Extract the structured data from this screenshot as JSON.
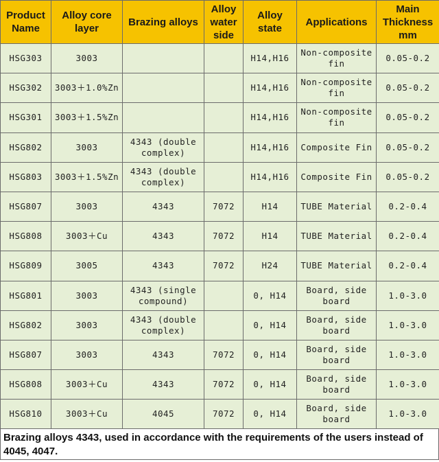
{
  "table": {
    "header": [
      "Product Name",
      "Alloy core layer",
      "Brazing alloys",
      "Alloy water side",
      "Alloy state",
      "Applications",
      "Main Thickness mm"
    ],
    "rows": [
      [
        "HSG303",
        "3003",
        "",
        "",
        "H14,H16",
        "Non-composite fin",
        "0.05-0.2"
      ],
      [
        "HSG302",
        "3003＋1.0%Zn",
        "",
        "",
        "H14,H16",
        "Non-composite fin",
        "0.05-0.2"
      ],
      [
        "HSG301",
        "3003＋1.5%Zn",
        "",
        "",
        "H14,H16",
        "Non-composite fin",
        "0.05-0.2"
      ],
      [
        "HSG802",
        "3003",
        "4343 (double complex)",
        "",
        "H14,H16",
        "Composite Fin",
        "0.05-0.2"
      ],
      [
        "HSG803",
        "3003＋1.5%Zn",
        "4343 (double complex)",
        "",
        "H14,H16",
        "Composite Fin",
        "0.05-0.2"
      ],
      [
        "HSG807",
        "3003",
        "4343",
        "7072",
        "H14",
        "TUBE Material",
        "0.2-0.4"
      ],
      [
        "HSG808",
        "3003＋Cu",
        "4343",
        "7072",
        "H14",
        "TUBE Material",
        "0.2-0.4"
      ],
      [
        "HSG809",
        "3005",
        "4343",
        "7072",
        "H24",
        "TUBE Material",
        "0.2-0.4"
      ],
      [
        "HSG801",
        "3003",
        "4343 (single compound)",
        "",
        "0, H14",
        "Board, side board",
        "1.0-3.0"
      ],
      [
        "HSG802",
        "3003",
        "4343 (double complex)",
        "",
        "0, H14",
        "Board, side board",
        "1.0-3.0"
      ],
      [
        "HSG807",
        "3003",
        "4343",
        "7072",
        "0, H14",
        "Board, side board",
        "1.0-3.0"
      ],
      [
        "HSG808",
        "3003＋Cu",
        "4343",
        "7072",
        "0, H14",
        "Board, side board",
        "1.0-3.0"
      ],
      [
        "HSG810",
        "3003＋Cu",
        "4045",
        "7072",
        "0, H14",
        "Board, side board",
        "1.0-3.0"
      ]
    ],
    "note": "Brazing alloys 4343,  used in accordance with the requirements of the users instead of 4045, 4047."
  }
}
